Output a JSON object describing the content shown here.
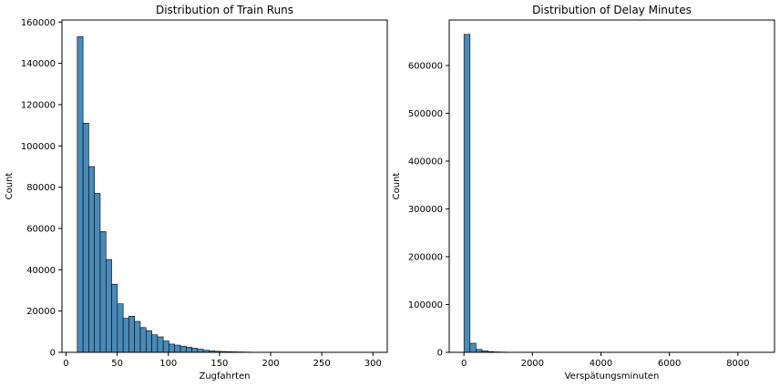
{
  "chart_data": [
    {
      "type": "bar",
      "title": "Distribution of Train Runs",
      "xlabel": "Zugfahrten",
      "ylabel": "Count",
      "xlim": [
        -4,
        314
      ],
      "ylim": [
        0,
        161000
      ],
      "x_ticks": [
        0,
        50,
        100,
        150,
        200,
        250,
        300
      ],
      "y_ticks": [
        0,
        20000,
        40000,
        60000,
        80000,
        100000,
        120000,
        140000,
        160000
      ],
      "bin_edges": [
        11,
        16.6,
        22.2,
        27.8,
        33.4,
        39,
        44.6,
        50.2,
        55.8,
        61.4,
        67,
        72.6,
        78.2,
        83.8,
        89.4,
        95,
        100.6,
        106.2,
        111.8,
        117.4,
        123,
        128.6,
        134.2,
        139.8,
        145.4,
        151,
        156.6,
        162.2,
        167.8,
        173.4,
        179,
        184.6,
        190.2,
        195.8,
        201.4,
        207,
        212.6,
        218.2,
        223.8,
        229.4,
        235,
        240.6,
        246.2,
        251.8,
        257.4,
        263,
        268.6,
        274.2,
        279.8,
        285.4,
        291,
        296.6,
        302.2
      ],
      "values": [
        153000,
        111000,
        90000,
        77000,
        58500,
        45000,
        33000,
        23500,
        16500,
        17500,
        15000,
        12000,
        10500,
        8500,
        7500,
        5500,
        4000,
        3500,
        3000,
        2500,
        2000,
        1500,
        1000,
        700,
        500,
        400,
        300,
        250,
        200,
        150,
        100,
        80,
        60,
        40,
        30,
        20,
        15,
        10,
        8,
        6,
        5,
        4,
        3,
        3,
        2,
        2,
        2,
        1,
        1,
        1,
        1,
        1
      ]
    },
    {
      "type": "bar",
      "title": "Distribution of Delay Minutes",
      "xlabel": "Verspätungsminuten",
      "ylabel": "Count",
      "xlim": [
        -430,
        9070
      ],
      "ylim": [
        0,
        695000
      ],
      "x_ticks": [
        0,
        2000,
        4000,
        6000,
        8000
      ],
      "y_ticks": [
        0,
        100000,
        200000,
        300000,
        400000,
        500000,
        600000
      ],
      "bin_edges": [
        0,
        176,
        352,
        528,
        704,
        880,
        1056,
        1232,
        1408,
        1584,
        1760,
        1936,
        2112,
        2288,
        2464,
        2640,
        2816,
        2992,
        3168,
        3344,
        3520,
        3696,
        3872,
        4048,
        4224,
        4400,
        4576,
        4752,
        4928,
        5104,
        5280,
        5456,
        5632,
        5808,
        5984,
        6160,
        6336,
        6512,
        6688,
        6864,
        7040,
        7216,
        7392,
        7568,
        7744,
        7920,
        8096,
        8272,
        8448,
        8624,
        8800
      ],
      "values": [
        665000,
        19000,
        6000,
        3000,
        1500,
        900,
        600,
        300,
        200,
        120,
        80,
        50,
        30,
        20,
        15,
        10,
        8,
        6,
        5,
        4,
        3,
        3,
        2,
        2,
        2,
        1,
        1,
        1,
        1,
        1,
        1,
        1,
        1,
        1,
        1,
        1,
        1,
        1,
        1,
        1,
        1,
        1,
        1,
        1,
        1,
        1,
        1,
        1,
        1,
        1
      ]
    }
  ],
  "colors": {
    "bar_fill": "#4a8ab8",
    "bar_edge": "#000000",
    "axes": "#000000",
    "background": "#ffffff"
  }
}
